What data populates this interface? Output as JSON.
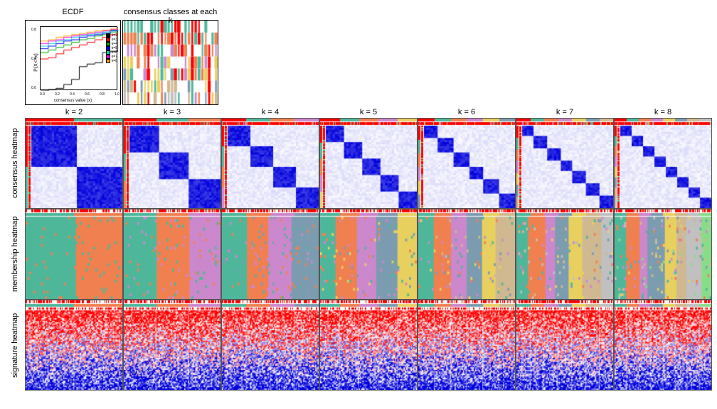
{
  "top": {
    "ecdf": {
      "title": "ECDF",
      "ylabel": "P(X<=x)",
      "xlabel": "consensus value (x)",
      "xticks": [
        "0.0",
        "0.2",
        "0.4",
        "0.6",
        "0.8",
        "1.0"
      ],
      "yticks": [
        "0.0",
        "0.4",
        "0.8"
      ],
      "curves": [
        {
          "k": "k=2",
          "color": "#000000",
          "y": [
            0.0,
            0.02,
            0.04,
            0.1,
            0.18,
            0.38,
            0.42,
            0.44,
            0.6,
            0.62,
            1.0
          ]
        },
        {
          "k": "k=3",
          "color": "#ff0000",
          "y": [
            0.5,
            0.52,
            0.58,
            0.64,
            0.68,
            0.72,
            0.76,
            0.8,
            0.84,
            0.88,
            1.0
          ]
        },
        {
          "k": "k=4",
          "color": "#00aa00",
          "y": [
            0.6,
            0.64,
            0.68,
            0.72,
            0.76,
            0.8,
            0.82,
            0.86,
            0.88,
            0.92,
            1.0
          ]
        },
        {
          "k": "k=5",
          "color": "#0000ff",
          "y": [
            0.66,
            0.7,
            0.74,
            0.78,
            0.8,
            0.84,
            0.86,
            0.88,
            0.9,
            0.94,
            1.0
          ]
        },
        {
          "k": "k=6",
          "color": "#00cccc",
          "y": [
            0.7,
            0.74,
            0.78,
            0.8,
            0.84,
            0.86,
            0.88,
            0.9,
            0.92,
            0.95,
            1.0
          ]
        },
        {
          "k": "k=7",
          "color": "#ff00ff",
          "y": [
            0.74,
            0.78,
            0.8,
            0.84,
            0.86,
            0.88,
            0.9,
            0.92,
            0.94,
            0.96,
            1.0
          ]
        },
        {
          "k": "k=8",
          "color": "#ffaa00",
          "y": [
            0.78,
            0.8,
            0.84,
            0.86,
            0.88,
            0.9,
            0.92,
            0.94,
            0.95,
            0.97,
            1.0
          ]
        }
      ]
    },
    "classes": {
      "title": "consensus classes at each k",
      "colors": [
        "#ff0000",
        "#4fb79a",
        "#f08050",
        "#cc88cc",
        "#e8d060",
        "#7c9cb0",
        "#d0b890",
        "#c0c0c0"
      ]
    }
  },
  "k_values": [
    2,
    3,
    4,
    5,
    6,
    7,
    8
  ],
  "col_header_prefix": "k = ",
  "row_labels": [
    "consensus heatmap",
    "membership heatmap",
    "signature heatmap"
  ],
  "consensus_colors": {
    "min": "#ffffff",
    "max": "#0000dd",
    "annot": [
      "#ff0000",
      "#4fb79a",
      "#f08050",
      "#cc88cc",
      "#e8d060",
      "#7c9cb0",
      "#d0b890",
      "#c0c0c0"
    ]
  },
  "membership_colors": [
    "#4fb79a",
    "#f08050",
    "#cc88cc",
    "#7c9cb0",
    "#e8d060",
    "#d0b890",
    "#c0c0c0",
    "#88dd88"
  ],
  "signature_colors": {
    "low": "#0000dd",
    "mid": "#ffffff",
    "high": "#ff0000"
  }
}
